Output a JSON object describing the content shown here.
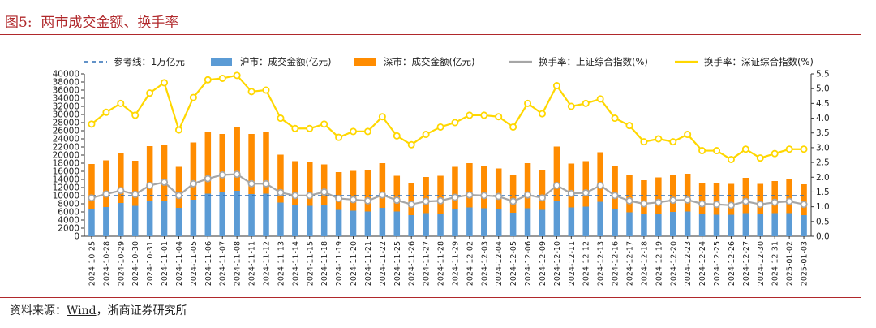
{
  "figure": {
    "title": "图5:  两市成交金额、换手率",
    "source_prefix": "资料来源：",
    "source_link": "Wind",
    "source_suffix": "，浙商证券研究所"
  },
  "colors": {
    "title": "#b0282b",
    "sh_bar": "#5b9bd5",
    "sz_bar": "#ff8c00",
    "ref_line": "#2f6fb5",
    "sh_turnover": "#a6a6a6",
    "sz_turnover": "#ffd700"
  },
  "chart_data": {
    "type": "bar",
    "stacked": true,
    "legend_position": "top",
    "legend": [
      "参考线：1万亿元",
      "沪市：成交金额(亿元)",
      "深市：成交金额(亿元)",
      "换手率：上证综合指数(%)",
      "换手率：深证综合指数(%)"
    ],
    "categories": [
      "2024-10-25",
      "2024-10-28",
      "2024-10-29",
      "2024-10-30",
      "2024-10-31",
      "2024-11-01",
      "2024-11-04",
      "2024-11-05",
      "2024-11-06",
      "2024-11-07",
      "2024-11-08",
      "2024-11-11",
      "2024-11-12",
      "2024-11-13",
      "2024-11-14",
      "2024-11-15",
      "2024-11-18",
      "2024-11-19",
      "2024-11-20",
      "2024-11-21",
      "2024-11-22",
      "2024-11-25",
      "2024-11-26",
      "2024-11-27",
      "2024-11-28",
      "2024-11-29",
      "2024-12-02",
      "2024-12-03",
      "2024-12-04",
      "2024-12-05",
      "2024-12-06",
      "2024-12-09",
      "2024-12-10",
      "2024-12-11",
      "2024-12-12",
      "2024-12-13",
      "2024-12-16",
      "2024-12-17",
      "2024-12-18",
      "2024-12-19",
      "2024-12-20",
      "2024-12-23",
      "2024-12-24",
      "2024-12-25",
      "2024-12-26",
      "2024-12-27",
      "2024-12-30",
      "2024-12-31",
      "2025-01-02",
      "2025-01-03"
    ],
    "y_left": {
      "min": 0,
      "max": 40000,
      "step": 2000
    },
    "y_right": {
      "min": 0.0,
      "max": 5.5,
      "step": 0.5
    },
    "series": [
      {
        "name": "参考线：1万亿元",
        "kind": "line",
        "axis": "left",
        "values": [
          10000,
          10000,
          10000,
          10000,
          10000,
          10000,
          10000,
          10000,
          10000,
          10000,
          10000,
          10000,
          10000,
          10000,
          10000,
          10000,
          10000,
          10000,
          10000,
          10000,
          10000,
          10000,
          10000,
          10000,
          10000,
          10000,
          10000,
          10000,
          10000,
          10000,
          10000,
          10000,
          10000,
          10000,
          10000,
          10000,
          10000,
          10000,
          10000,
          10000,
          10000,
          10000,
          10000,
          10000,
          10000,
          10000,
          10000,
          10000,
          10000,
          10000
        ]
      },
      {
        "name": "沪市：成交金额(亿元)",
        "kind": "bar",
        "axis": "left",
        "values": [
          6800,
          7200,
          8200,
          7500,
          8700,
          8800,
          7000,
          9000,
          10500,
          10800,
          11200,
          10400,
          10500,
          8300,
          7700,
          7500,
          7600,
          6500,
          6300,
          6100,
          7000,
          6100,
          5200,
          5700,
          5600,
          6600,
          7100,
          6900,
          6700,
          5800,
          6900,
          6500,
          8700,
          7100,
          7300,
          8500,
          6800,
          5900,
          5500,
          5600,
          6000,
          6100,
          5400,
          5300,
          5300,
          5700,
          5400,
          5700,
          5700,
          5200
        ]
      },
      {
        "name": "深市：成交金额(亿元)",
        "kind": "bar",
        "axis": "left",
        "values": [
          11000,
          11500,
          12400,
          11100,
          13500,
          13600,
          10100,
          14100,
          15300,
          14400,
          15800,
          14800,
          15100,
          11800,
          10800,
          10900,
          10100,
          9300,
          9800,
          10100,
          11000,
          8800,
          8000,
          8900,
          9300,
          10500,
          10900,
          10400,
          10000,
          9200,
          11100,
          9900,
          13400,
          10800,
          11200,
          12200,
          10400,
          9300,
          8300,
          8900,
          9200,
          9300,
          7800,
          7700,
          7600,
          8700,
          7500,
          7900,
          8300,
          7600
        ]
      },
      {
        "name": "换手率：上证综合指数(%)",
        "kind": "line",
        "axis": "right",
        "values": [
          1.3,
          1.43,
          1.55,
          1.42,
          1.72,
          1.83,
          1.38,
          1.78,
          1.95,
          2.08,
          2.1,
          1.78,
          1.78,
          1.48,
          1.38,
          1.38,
          1.5,
          1.28,
          1.24,
          1.2,
          1.4,
          1.22,
          1.08,
          1.18,
          1.2,
          1.32,
          1.4,
          1.38,
          1.35,
          1.18,
          1.4,
          1.3,
          1.72,
          1.45,
          1.47,
          1.72,
          1.38,
          1.2,
          1.1,
          1.15,
          1.22,
          1.23,
          1.1,
          1.08,
          1.05,
          1.18,
          1.08,
          1.15,
          1.18,
          1.08
        ]
      },
      {
        "name": "换手率：深证综合指数(%)",
        "kind": "line",
        "axis": "right",
        "values": [
          3.8,
          4.2,
          4.5,
          4.1,
          4.85,
          5.2,
          3.6,
          4.7,
          5.3,
          5.35,
          5.45,
          4.9,
          4.95,
          4.0,
          3.65,
          3.65,
          3.8,
          3.35,
          3.55,
          3.55,
          4.05,
          3.4,
          3.1,
          3.45,
          3.7,
          3.85,
          4.1,
          4.1,
          4.05,
          3.7,
          4.5,
          4.15,
          5.1,
          4.4,
          4.5,
          4.65,
          4.0,
          3.75,
          3.2,
          3.3,
          3.2,
          3.45,
          2.9,
          2.9,
          2.6,
          2.95,
          2.65,
          2.8,
          2.95,
          2.95
        ]
      }
    ]
  }
}
